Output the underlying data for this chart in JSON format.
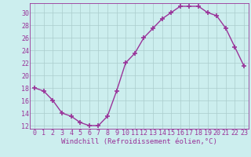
{
  "x": [
    0,
    1,
    2,
    3,
    4,
    5,
    6,
    7,
    8,
    9,
    10,
    11,
    12,
    13,
    14,
    15,
    16,
    17,
    18,
    19,
    20,
    21,
    22,
    23
  ],
  "y": [
    18,
    17.5,
    16,
    14,
    13.5,
    12.5,
    12,
    12,
    13.5,
    17.5,
    22,
    23.5,
    26,
    27.5,
    29,
    30,
    31,
    31,
    31,
    30,
    29.5,
    27.5,
    24.5,
    21.5
  ],
  "line_color": "#993399",
  "marker_color": "#993399",
  "bg_color": "#cceeee",
  "grid_color": "#aacccc",
  "xlabel": "Windchill (Refroidissement éolien,°C)",
  "xlim": [
    -0.5,
    23.5
  ],
  "ylim": [
    11.5,
    31.5
  ],
  "yticks": [
    12,
    14,
    16,
    18,
    20,
    22,
    24,
    26,
    28,
    30
  ],
  "xticks": [
    0,
    1,
    2,
    3,
    4,
    5,
    6,
    7,
    8,
    9,
    10,
    11,
    12,
    13,
    14,
    15,
    16,
    17,
    18,
    19,
    20,
    21,
    22,
    23
  ],
  "xlabel_fontsize": 6.5,
  "tick_fontsize": 6.0,
  "line_width": 1.0,
  "marker_size": 4,
  "marker_style": "+"
}
